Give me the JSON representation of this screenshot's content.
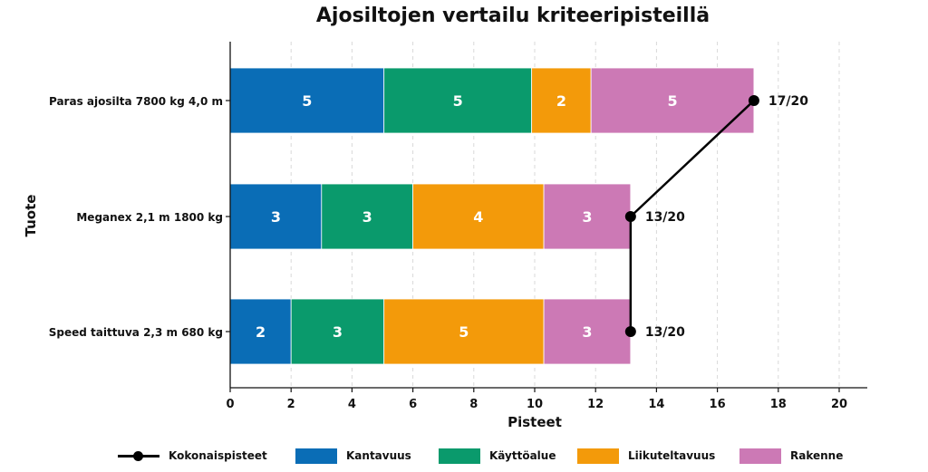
{
  "chart_data": {
    "type": "bar",
    "orientation": "horizontal",
    "stacked": true,
    "title": "Ajosiltojen vertailu kriteeripisteillä",
    "xlabel": "Pisteet",
    "ylabel": "Tuote",
    "xlim": [
      0,
      21
    ],
    "xticks": [
      0,
      2,
      4,
      6,
      8,
      10,
      12,
      14,
      16,
      18,
      20
    ],
    "grid": "vertical dashed",
    "legend_position": "bottom",
    "categories": [
      "Paras ajosilta 7800 kg 4,0 m",
      "Meganex 2,1 m 1800 kg",
      "Speed taittuva 2,3 m 680 kg"
    ],
    "series": [
      {
        "name": "Kantavuus",
        "color": "#0a6db6",
        "values": [
          5,
          3,
          2
        ],
        "widths": [
          5.05,
          3.0,
          2.0
        ]
      },
      {
        "name": "Käyttöalue",
        "color": "#0a9a6c",
        "values": [
          5,
          3,
          3
        ],
        "widths": [
          4.85,
          3.0,
          3.05
        ]
      },
      {
        "name": "Liikuteltavuus",
        "color": "#f39a0a",
        "values": [
          2,
          4,
          5
        ],
        "widths": [
          1.95,
          4.3,
          5.25
        ]
      },
      {
        "name": "Rakenne",
        "color": "#cc79b5",
        "values": [
          5,
          3,
          3
        ],
        "widths": [
          5.35,
          2.85,
          2.85
        ]
      }
    ],
    "total_series": {
      "name": "Kokonaispisteet",
      "color": "#000000",
      "values": [
        17.2,
        13.15,
        13.15
      ],
      "labels": [
        "17/20",
        "13/20",
        "13/20"
      ]
    }
  }
}
